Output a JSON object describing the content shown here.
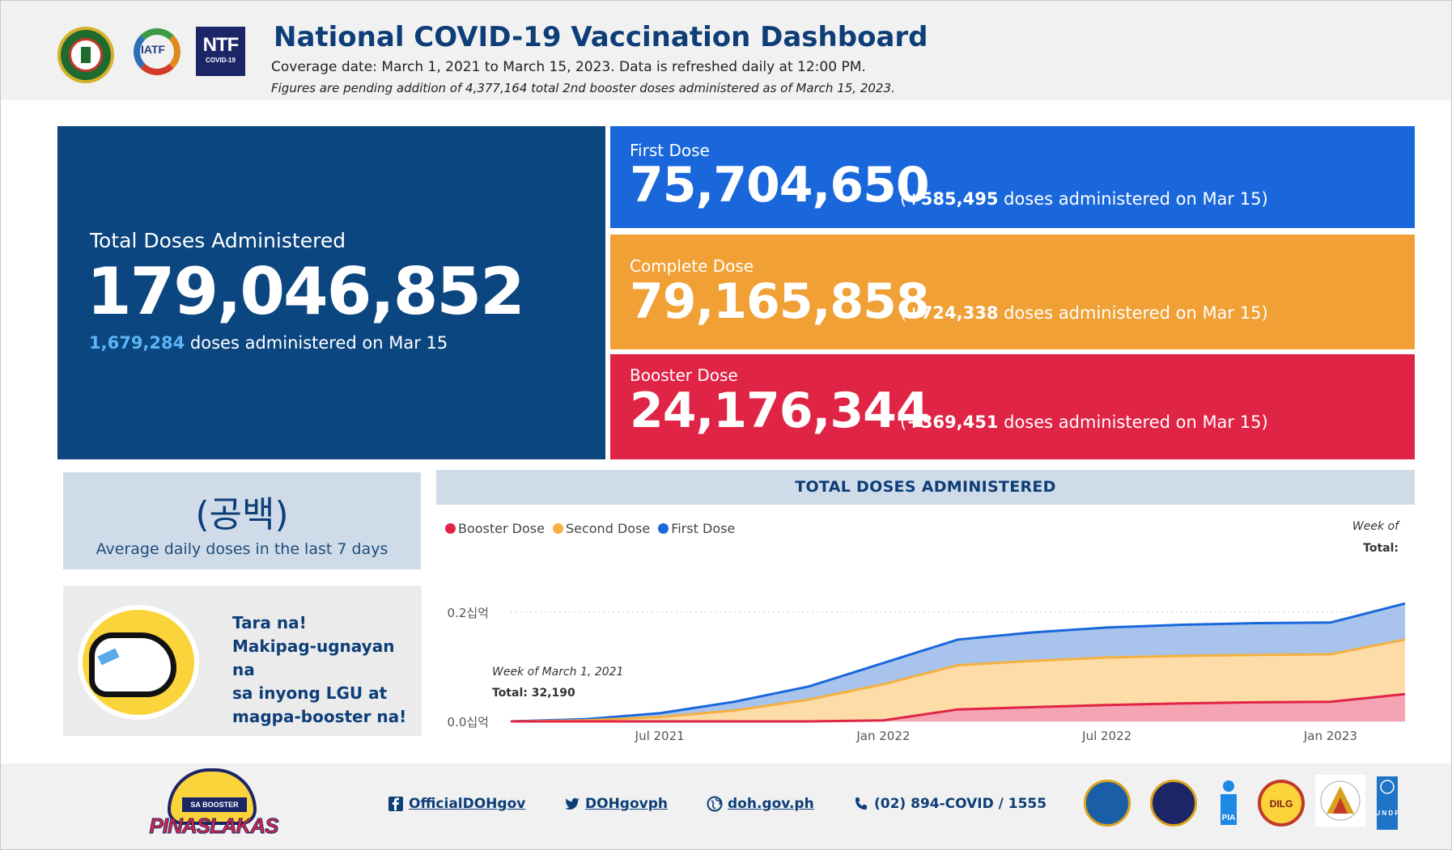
{
  "header": {
    "title": "National COVID-19 Vaccination Dashboard",
    "coverage": "Coverage date: March 1, 2021 to March 15, 2023. Data is refreshed daily at 12:00 PM.",
    "pending_note": "Figures are pending addition of 4,377,164 total 2nd booster doses administered as of March 15, 2023.",
    "logos": {
      "doh": "DOH seal",
      "iatf": "IATF",
      "ntf": {
        "big": "NTF",
        "small": "COVID-19"
      }
    }
  },
  "kpis": {
    "total": {
      "label": "Total Doses Administered",
      "value": "179,046,852",
      "daily_value": "1,679,284",
      "daily_text": " doses administered on Mar 15"
    },
    "first": {
      "label": "First Dose",
      "value": "75,704,650",
      "delta": "+585,495",
      "delta_text": " doses administered on Mar 15)"
    },
    "complete": {
      "label": "Complete Dose",
      "value": "79,165,858",
      "delta": "+724,338",
      "delta_text": " doses administered on Mar 15)"
    },
    "booster": {
      "label": "Booster Dose",
      "value": "24,176,344",
      "delta": "+369,451",
      "delta_text": " doses administered on Mar 15)"
    }
  },
  "average": {
    "value": "(공백)",
    "caption": "Average daily doses in the last 7 days"
  },
  "promo": {
    "line1": "Tara na!",
    "line2": "Makipag-ugnayan na",
    "line3": "sa inyong LGU at",
    "line4": "magpa-booster na!"
  },
  "chart": {
    "heading": "TOTAL DOSES ADMINISTERED",
    "legend": [
      {
        "name": "Booster Dose",
        "color": "#e02445"
      },
      {
        "name": "Second Dose",
        "color": "#f5b041"
      },
      {
        "name": "First Dose",
        "color": "#1967db"
      }
    ],
    "tooltip_right": {
      "week": "Week of",
      "total": "Total:"
    },
    "tooltip_left": {
      "week": "Week of March 1, 2021",
      "total": "Total: 32,190"
    }
  },
  "chart_data": {
    "type": "area",
    "title": "TOTAL DOSES ADMINISTERED",
    "y_unit_label": "십억",
    "y_ticks": [
      "0.0십억",
      "0.2십억"
    ],
    "ylim": [
      0,
      0.24
    ],
    "x_ticks": [
      "Jul 2021",
      "Jan 2022",
      "Jul 2022",
      "Jan 2023"
    ],
    "x": [
      "2021-03",
      "2021-05",
      "2021-07",
      "2021-09",
      "2021-11",
      "2022-01",
      "2022-03",
      "2022-05",
      "2022-07",
      "2022-09",
      "2022-11",
      "2023-01",
      "2023-03"
    ],
    "series": [
      {
        "name": "Booster Dose",
        "values": [
          0.0,
          0.0,
          0.0,
          0.0,
          0.0,
          0.002,
          0.022,
          0.026,
          0.03,
          0.033,
          0.035,
          0.036,
          0.05
        ]
      },
      {
        "name": "Second Dose",
        "values": [
          0.0,
          0.002,
          0.008,
          0.02,
          0.04,
          0.068,
          0.103,
          0.111,
          0.117,
          0.12,
          0.122,
          0.123,
          0.15
        ]
      },
      {
        "name": "First Dose",
        "values": [
          0.0,
          0.004,
          0.015,
          0.036,
          0.064,
          0.107,
          0.15,
          0.163,
          0.172,
          0.177,
          0.18,
          0.181,
          0.216
        ]
      }
    ]
  },
  "footer": {
    "campaign": {
      "ribbon": "SA BOOSTER",
      "word": "PINASLAKAS"
    },
    "facebook": "OfficialDOHgov",
    "twitter": "DOHgovph",
    "website": "doh.gov.ph",
    "phone": "(02) 894-COVID / 1555",
    "seals": [
      {
        "name": "pcoo-seal",
        "color": "#1b5ea8"
      },
      {
        "name": "pcg-seal",
        "color": "#1c2566"
      },
      {
        "name": "pia-logo",
        "color": "#1e88e5"
      },
      {
        "name": "dilg-seal",
        "color": "#c0392b"
      },
      {
        "name": "opapru-seal",
        "color": "#d9a21b"
      },
      {
        "name": "undp-logo",
        "color": "#1e74c6"
      }
    ],
    "pia_text": "PIA",
    "dilg_text": "DILG",
    "undp_text": "U N D P"
  }
}
